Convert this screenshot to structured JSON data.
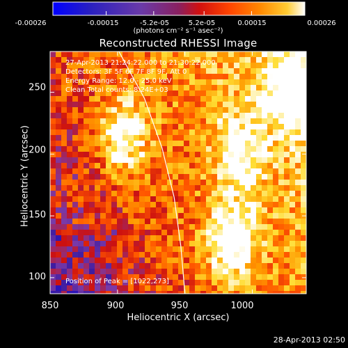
{
  "chart_data": {
    "type": "heatmap",
    "title": "Reconstructed RHESSI Image",
    "xlabel": "Heliocentric X (arcsec)",
    "ylabel": "Heliocentric Y (arcsec)",
    "xlim": [
      850,
      1040
    ],
    "ylim": [
      87,
      283
    ],
    "x_ticks": [
      850,
      900,
      950,
      1000
    ],
    "x_tick_labels": [
      "850",
      "900",
      "950",
      "1000"
    ],
    "y_ticks": [
      100,
      150,
      200,
      250
    ],
    "y_tick_labels": [
      "100",
      "150",
      "200",
      "250"
    ],
    "colorbar": {
      "range": [
        -0.00026,
        0.00026
      ],
      "ticks": [
        -0.00026,
        -0.00015,
        -5.2e-05,
        5.2e-05,
        0.00015,
        0.00026
      ],
      "tick_labels": [
        "-0.00026",
        "-0.00015",
        "-5.2e-05",
        "5.2e-05",
        "0.00015",
        "0.00026"
      ],
      "units": "(photons cm⁻² s⁻¹ asec⁻²)",
      "colors": [
        "#0000ff",
        "#3a1aa0",
        "#7a3aa8",
        "#cc1010",
        "#ff5500",
        "#ff9900",
        "#ffdd33",
        "#ffffff"
      ]
    },
    "annotations": {
      "time_range": "27-Apr-2013 21:24:22.000 to 21:30:22.000",
      "detectors": "Detectors: 3F 5F 6F 7F 8F 9F, Att 0",
      "energy_range": "Energy Range: 12.0 - 25.0 keV",
      "method_counts": "Clean    Total counts: 8.24E+03",
      "peak": "Position of Peak = [1022,273]"
    },
    "limb_curve": {
      "description": "solar limb",
      "points": [
        [
          901,
          283
        ],
        [
          920,
          245
        ],
        [
          933,
          205
        ],
        [
          942,
          165
        ],
        [
          947,
          125
        ],
        [
          950,
          87
        ]
      ]
    },
    "bright_regions": [
      {
        "x": 905,
        "y": 215,
        "level": 0.85
      },
      {
        "x": 985,
        "y": 130,
        "level": 0.95
      },
      {
        "x": 1030,
        "y": 250,
        "level": 0.95
      },
      {
        "x": 990,
        "y": 200,
        "level": 0.7
      }
    ],
    "peak_position": [
      1022,
      273
    ]
  },
  "footer": {
    "timestamp": "28-Apr-2013 02:50"
  }
}
